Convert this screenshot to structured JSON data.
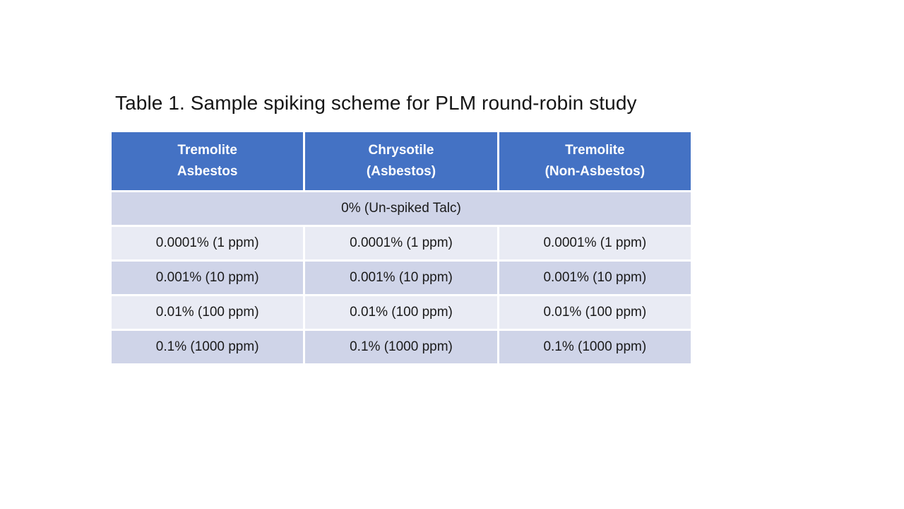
{
  "title": "Table 1. Sample spiking scheme for PLM round-robin study",
  "colors": {
    "header_bg": "#4472C4",
    "header_text": "#FFFFFF",
    "band_dark": "#CFD4E8",
    "band_light": "#E9EBF4",
    "body_text": "#1A1A1A",
    "gap": "#FFFFFF"
  },
  "table": {
    "headers": [
      {
        "line1": "Tremolite",
        "line2": "Asbestos"
      },
      {
        "line1": "Chrysotile",
        "line2": "(Asbestos)"
      },
      {
        "line1": "Tremolite",
        "line2": "(Non-Asbestos)"
      }
    ],
    "merged_row_label": "0% (Un-spiked Talc)",
    "rows": [
      {
        "cells": [
          "0.0001% (1 ppm)",
          "0.0001% (1 ppm)",
          "0.0001% (1 ppm)"
        ]
      },
      {
        "cells": [
          "0.001% (10 ppm)",
          "0.001% (10 ppm)",
          "0.001% (10 ppm)"
        ]
      },
      {
        "cells": [
          "0.01% (100 ppm)",
          "0.01% (100 ppm)",
          "0.01% (100 ppm)"
        ]
      },
      {
        "cells": [
          "0.1% (1000 ppm)",
          "0.1% (1000 ppm)",
          "0.1% (1000 ppm)"
        ]
      }
    ]
  }
}
